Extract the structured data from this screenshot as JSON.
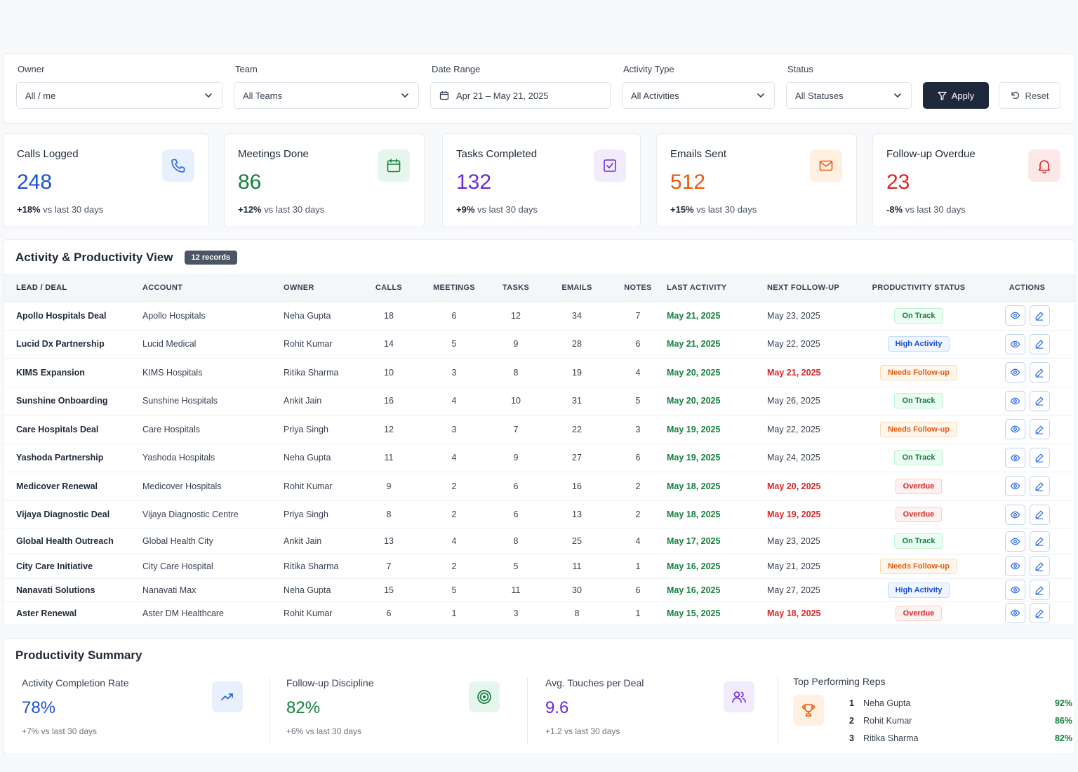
{
  "filters": {
    "owner": {
      "label": "Owner",
      "value": "All / me"
    },
    "team": {
      "label": "Team",
      "value": "All Teams"
    },
    "date_range": {
      "label": "Date Range",
      "value": "Apr 21 – May 21, 2025"
    },
    "activity_type": {
      "label": "Activity Type",
      "value": "All Activities"
    },
    "status": {
      "label": "Status",
      "value": "All Statuses"
    },
    "apply_label": "Apply",
    "reset_label": "Reset"
  },
  "kpis": [
    {
      "title": "Calls Logged",
      "value": "248",
      "delta": "+18%",
      "delta_text": "vs last 30 days",
      "color": "#1d4ed8",
      "icon": "phone-icon"
    },
    {
      "title": "Meetings Done",
      "value": "86",
      "delta": "+12%",
      "delta_text": "vs last 30 days",
      "color": "#15803d",
      "icon": "calendar-icon"
    },
    {
      "title": "Tasks Completed",
      "value": "132",
      "delta": "+9%",
      "delta_text": "vs last 30 days",
      "color": "#6d28d9",
      "icon": "checkbox-icon"
    },
    {
      "title": "Emails Sent",
      "value": "512",
      "delta": "+15%",
      "delta_text": "vs last 30 days",
      "color": "#ea580c",
      "icon": "mail-icon"
    },
    {
      "title": "Follow-up Overdue",
      "value": "23",
      "delta": "-8%",
      "delta_text": "vs last 30 days",
      "color": "#dc2626",
      "icon": "bell-icon"
    }
  ],
  "table": {
    "title": "Activity & Productivity View",
    "records_badge": "12 records",
    "columns": [
      "LEAD / DEAL",
      "ACCOUNT",
      "OWNER",
      "CALLS",
      "MEETINGS",
      "TASKS",
      "EMAILS",
      "NOTES",
      "LAST ACTIVITY",
      "NEXT FOLLOW-UP",
      "PRODUCTIVITY STATUS",
      "ACTIONS"
    ],
    "rows": [
      {
        "lead": "Apollo Hospitals Deal",
        "account": "Apollo Hospitals",
        "owner": "Neha Gupta",
        "calls": "18",
        "meetings": "6",
        "tasks": "12",
        "emails": "34",
        "notes": "7",
        "last": "May 21, 2025",
        "next": "May 23, 2025",
        "next_overdue": false,
        "status": "On Track"
      },
      {
        "lead": "Lucid Dx Partnership",
        "account": "Lucid Medical",
        "owner": "Rohit Kumar",
        "calls": "14",
        "meetings": "5",
        "tasks": "9",
        "emails": "28",
        "notes": "6",
        "last": "May 21, 2025",
        "next": "May 22, 2025",
        "next_overdue": false,
        "status": "High Activity"
      },
      {
        "lead": "KIMS Expansion",
        "account": "KIMS Hospitals",
        "owner": "Ritika Sharma",
        "calls": "10",
        "meetings": "3",
        "tasks": "8",
        "emails": "19",
        "notes": "4",
        "last": "May 20, 2025",
        "next": "May 21, 2025",
        "next_overdue": true,
        "status": "Needs Follow-up"
      },
      {
        "lead": "Sunshine Onboarding",
        "account": "Sunshine Hospitals",
        "owner": "Ankit Jain",
        "calls": "16",
        "meetings": "4",
        "tasks": "10",
        "emails": "31",
        "notes": "5",
        "last": "May 20, 2025",
        "next": "May 26, 2025",
        "next_overdue": false,
        "status": "On Track"
      },
      {
        "lead": "Care Hospitals Deal",
        "account": "Care Hospitals",
        "owner": "Priya Singh",
        "calls": "12",
        "meetings": "3",
        "tasks": "7",
        "emails": "22",
        "notes": "3",
        "last": "May 19, 2025",
        "next": "May 22, 2025",
        "next_overdue": false,
        "status": "Needs Follow-up"
      },
      {
        "lead": "Yashoda Partnership",
        "account": "Yashoda Hospitals",
        "owner": "Neha Gupta",
        "calls": "11",
        "meetings": "4",
        "tasks": "9",
        "emails": "27",
        "notes": "6",
        "last": "May 19, 2025",
        "next": "May 24, 2025",
        "next_overdue": false,
        "status": "On Track"
      },
      {
        "lead": "Medicover Renewal",
        "account": "Medicover Hospitals",
        "owner": "Rohit Kumar",
        "calls": "9",
        "meetings": "2",
        "tasks": "6",
        "emails": "16",
        "notes": "2",
        "last": "May 18, 2025",
        "next": "May 20, 2025",
        "next_overdue": true,
        "status": "Overdue"
      },
      {
        "lead": "Vijaya Diagnostic Deal",
        "account": "Vijaya Diagnostic Centre",
        "owner": "Priya Singh",
        "calls": "8",
        "meetings": "2",
        "tasks": "6",
        "emails": "13",
        "notes": "2",
        "last": "May 18, 2025",
        "next": "May 19, 2025",
        "next_overdue": true,
        "status": "Overdue"
      },
      {
        "lead": "Global Health Outreach",
        "account": "Global Health City",
        "owner": "Ankit Jain",
        "calls": "13",
        "meetings": "4",
        "tasks": "8",
        "emails": "25",
        "notes": "4",
        "last": "May 17, 2025",
        "next": "May 23, 2025",
        "next_overdue": false,
        "status": "On Track"
      },
      {
        "lead": "City Care Initiative",
        "account": "City Care Hospital",
        "owner": "Ritika Sharma",
        "calls": "7",
        "meetings": "2",
        "tasks": "5",
        "emails": "11",
        "notes": "1",
        "last": "May 16, 2025",
        "next": "May 21, 2025",
        "next_overdue": false,
        "status": "Needs Follow-up"
      },
      {
        "lead": "Nanavati Solutions",
        "account": "Nanavati Max",
        "owner": "Neha Gupta",
        "calls": "15",
        "meetings": "5",
        "tasks": "11",
        "emails": "30",
        "notes": "6",
        "last": "May 16, 2025",
        "next": "May 27, 2025",
        "next_overdue": false,
        "status": "High Activity"
      },
      {
        "lead": "Aster Renewal",
        "account": "Aster DM Healthcare",
        "owner": "Rohit Kumar",
        "calls": "6",
        "meetings": "1",
        "tasks": "3",
        "emails": "8",
        "notes": "1",
        "last": "May 15, 2025",
        "next": "May 18, 2025",
        "next_overdue": true,
        "status": "Overdue"
      }
    ]
  },
  "summary": {
    "title": "Productivity Summary",
    "completion": {
      "label": "Activity Completion Rate",
      "value": "78%",
      "delta": "+7% vs last 30 days",
      "color": "#1d4ed8"
    },
    "discipline": {
      "label": "Follow-up Discipline",
      "value": "82%",
      "delta": "+6% vs last 30 days",
      "color": "#15803d"
    },
    "touches": {
      "label": "Avg. Touches per Deal",
      "value": "9.6",
      "delta": "+1.2 vs last 30 days",
      "color": "#6d28d9"
    },
    "top_reps": {
      "label": "Top Performing Reps",
      "reps": [
        {
          "rank": "1",
          "name": "Neha Gupta",
          "pct": "92%"
        },
        {
          "rank": "2",
          "name": "Rohit Kumar",
          "pct": "86%"
        },
        {
          "rank": "3",
          "name": "Ritika Sharma",
          "pct": "82%"
        }
      ]
    }
  }
}
